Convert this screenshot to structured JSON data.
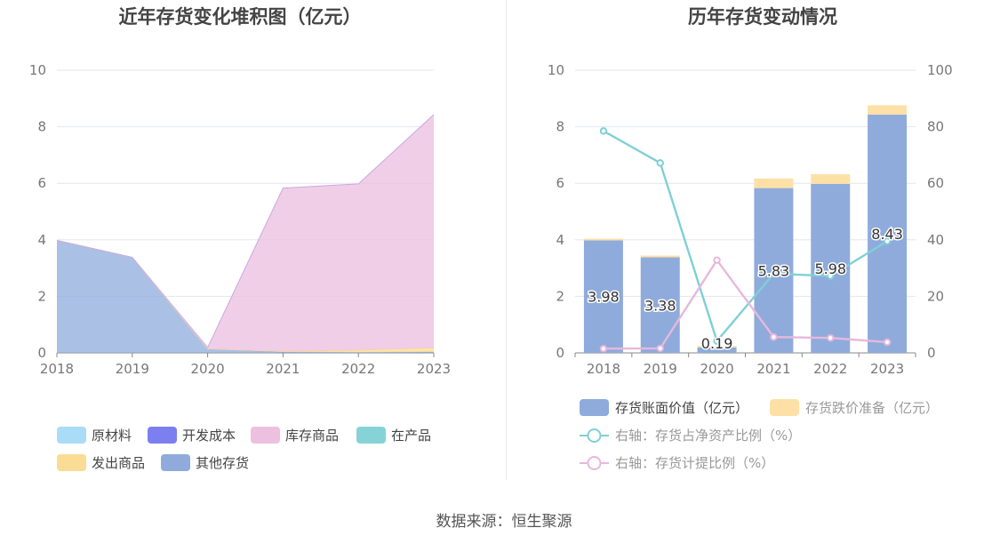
{
  "source_label": "数据来源：恒生聚源",
  "colors": {
    "raw_material": "#a8dcf7",
    "dev_cost": "#7b7ff0",
    "stock_goods": "#edc0e0",
    "in_process": "#85d3d6",
    "shipped_goods": "#fbdc94",
    "other_inventory": "#8fabdc",
    "book_value_bar": "#8fabdc",
    "impairment_bar": "#fde0a6",
    "net_asset_line": "#7fd0d6",
    "provision_line": "#e8b8dc"
  },
  "chart_data": [
    {
      "type": "area",
      "title": "近年存货变化堆积图（亿元）",
      "x": [
        "2018",
        "2019",
        "2020",
        "2021",
        "2022",
        "2023"
      ],
      "ylim": [
        0,
        10
      ],
      "yticks": [
        "0",
        "2",
        "4",
        "6",
        "8",
        "10"
      ],
      "grid": true,
      "legend_position": "bottom",
      "series": [
        {
          "name": "原材料",
          "values": [
            0,
            0,
            0,
            0,
            0,
            0
          ]
        },
        {
          "name": "开发成本",
          "values": [
            0,
            0,
            0,
            0,
            0,
            0
          ]
        },
        {
          "name": "库存商品",
          "values": [
            0,
            0,
            0.05,
            5.78,
            5.88,
            8.25
          ]
        },
        {
          "name": "在产品",
          "values": [
            0,
            0,
            0,
            0,
            0,
            0
          ]
        },
        {
          "name": "发出商品",
          "values": [
            0,
            0,
            0,
            0.02,
            0.08,
            0.15
          ]
        },
        {
          "name": "其他存货",
          "values": [
            3.98,
            3.38,
            0.14,
            0.03,
            0.02,
            0.03
          ]
        }
      ]
    },
    {
      "type": "bar",
      "title": "历年存货变动情况",
      "categories": [
        "2018",
        "2019",
        "2020",
        "2021",
        "2022",
        "2023"
      ],
      "ylim": [
        0,
        10
      ],
      "y2lim": [
        0,
        100
      ],
      "yticks": [
        "0",
        "2",
        "4",
        "6",
        "8",
        "10"
      ],
      "y2ticks": [
        "0",
        "20",
        "40",
        "60",
        "80",
        "100"
      ],
      "grid": true,
      "legend_position": "bottom",
      "series": [
        {
          "name": "存货账面价值（亿元）",
          "kind": "bar",
          "values": [
            3.98,
            3.38,
            0.19,
            5.83,
            5.98,
            8.43
          ],
          "labels": [
            "3.98",
            "3.38",
            "0.19",
            "5.83",
            "5.98",
            "8.43"
          ]
        },
        {
          "name": "存货跌价准备（亿元）",
          "kind": "bar",
          "values": [
            0.06,
            0.06,
            0.06,
            0.34,
            0.34,
            0.33
          ]
        },
        {
          "name": "右轴：存货占净资产比例（%）",
          "kind": "line",
          "axis": "right",
          "values": [
            78.5,
            67.2,
            4.2,
            28.0,
            27.2,
            39.5
          ]
        },
        {
          "name": "右轴：存货计提比例（%）",
          "kind": "line",
          "axis": "right",
          "values": [
            1.5,
            1.6,
            32.8,
            5.6,
            5.3,
            3.8
          ]
        }
      ]
    }
  ]
}
